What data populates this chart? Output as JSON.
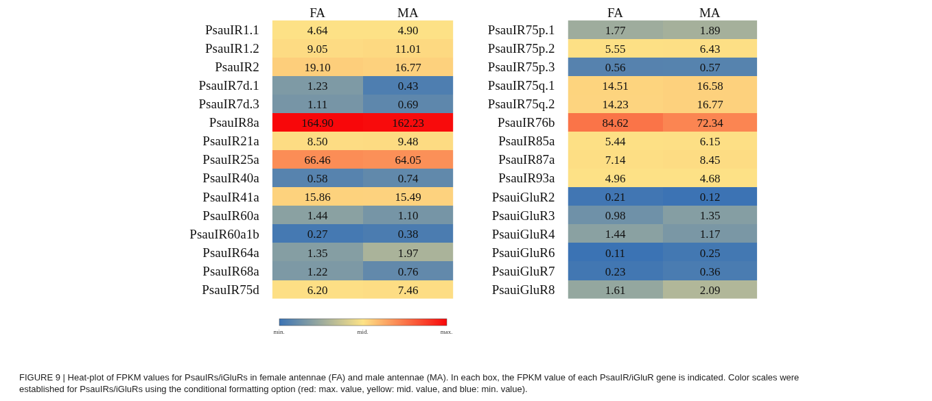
{
  "chart_data": [
    {
      "type": "heatmap",
      "categories": [
        "FA",
        "MA"
      ],
      "y_categories": [
        "PsauIR1.1",
        "PsauIR1.2",
        "PsauIR2",
        "PsauIR7d.1",
        "PsauIR7d.3",
        "PsauIR8a",
        "PsauIR21a",
        "PsauIR25a",
        "PsauIR40a",
        "PsauIR41a",
        "PsauIR60a",
        "PsauIR60a1b",
        "PsauIR64a",
        "PsauIR68a",
        "PsauIR75d"
      ],
      "cells": [
        [
          4.64,
          4.9
        ],
        [
          9.05,
          11.01
        ],
        [
          19.1,
          16.77
        ],
        [
          1.23,
          0.43
        ],
        [
          1.11,
          0.69
        ],
        [
          164.9,
          162.23
        ],
        [
          8.5,
          9.48
        ],
        [
          66.46,
          64.05
        ],
        [
          0.58,
          0.74
        ],
        [
          15.86,
          15.49
        ],
        [
          1.44,
          1.1
        ],
        [
          0.27,
          0.38
        ],
        [
          1.35,
          1.97
        ],
        [
          1.22,
          0.76
        ],
        [
          6.2,
          7.46
        ]
      ],
      "cell_labels": [
        [
          "4.64",
          "4.90"
        ],
        [
          "9.05",
          "11.01"
        ],
        [
          "19.10",
          "16.77"
        ],
        [
          "1.23",
          "0.43"
        ],
        [
          "1.11",
          "0.69"
        ],
        [
          "164.90",
          "162.23"
        ],
        [
          "8.50",
          "9.48"
        ],
        [
          "66.46",
          "64.05"
        ],
        [
          "0.58",
          "0.74"
        ],
        [
          "15.86",
          "15.49"
        ],
        [
          "1.44",
          "1.10"
        ],
        [
          "0.27",
          "0.38"
        ],
        [
          "1.35",
          "1.97"
        ],
        [
          "1.22",
          "0.76"
        ],
        [
          "6.20",
          "7.46"
        ]
      ],
      "cticks": [
        {
          "label": "min."
        },
        {
          "label": "mid."
        },
        {
          "label": "max."
        }
      ],
      "annotations": [
        "FIGURE 9 | Heat-plot of FPKM values for PsauIRs/iGluRs in female antennae (FA) and male antennae (MA). In each box, the FPKM value of each PsauIR/iGluR gene is indicated. Color scales were established for PsauIRs/iGluRs using the conditional formatting option (red: max. value, yellow: mid. value, and blue: min. value)."
      ]
    },
    {
      "type": "heatmap",
      "categories": [
        "FA",
        "MA"
      ],
      "y_categories": [
        "PsauIR75p.1",
        "PsauIR75p.2",
        "PsauIR75p.3",
        "PsauIR75q.1",
        "PsauIR75q.2",
        "PsauIR76b",
        "PsauIR85a",
        "PsauIR87a",
        "PsauIR93a",
        "PsauiGluR2",
        "PsauiGluR3",
        "PsauiGluR4",
        "PsauiGluR6",
        "PsauiGluR7",
        "PsauiGluR8"
      ],
      "cells": [
        [
          1.77,
          1.89
        ],
        [
          5.55,
          6.43
        ],
        [
          0.56,
          0.57
        ],
        [
          14.51,
          16.58
        ],
        [
          14.23,
          16.77
        ],
        [
          84.62,
          72.34
        ],
        [
          5.44,
          6.15
        ],
        [
          7.14,
          8.45
        ],
        [
          4.96,
          4.68
        ],
        [
          0.21,
          0.12
        ],
        [
          0.98,
          1.35
        ],
        [
          1.44,
          1.17
        ],
        [
          0.11,
          0.25
        ],
        [
          0.23,
          0.36
        ],
        [
          1.61,
          2.09
        ]
      ],
      "cell_labels": [
        [
          "1.77",
          "1.89"
        ],
        [
          "5.55",
          "6.43"
        ],
        [
          "0.56",
          "0.57"
        ],
        [
          "14.51",
          "16.58"
        ],
        [
          "14.23",
          "16.77"
        ],
        [
          "84.62",
          "72.34"
        ],
        [
          "5.44",
          "6.15"
        ],
        [
          "7.14",
          "8.45"
        ],
        [
          "4.96",
          "4.68"
        ],
        [
          "0.21",
          "0.12"
        ],
        [
          "0.98",
          "1.35"
        ],
        [
          "1.44",
          "1.17"
        ],
        [
          "0.11",
          "0.25"
        ],
        [
          "0.23",
          "0.36"
        ],
        [
          "1.61",
          "2.09"
        ]
      ]
    }
  ]
}
